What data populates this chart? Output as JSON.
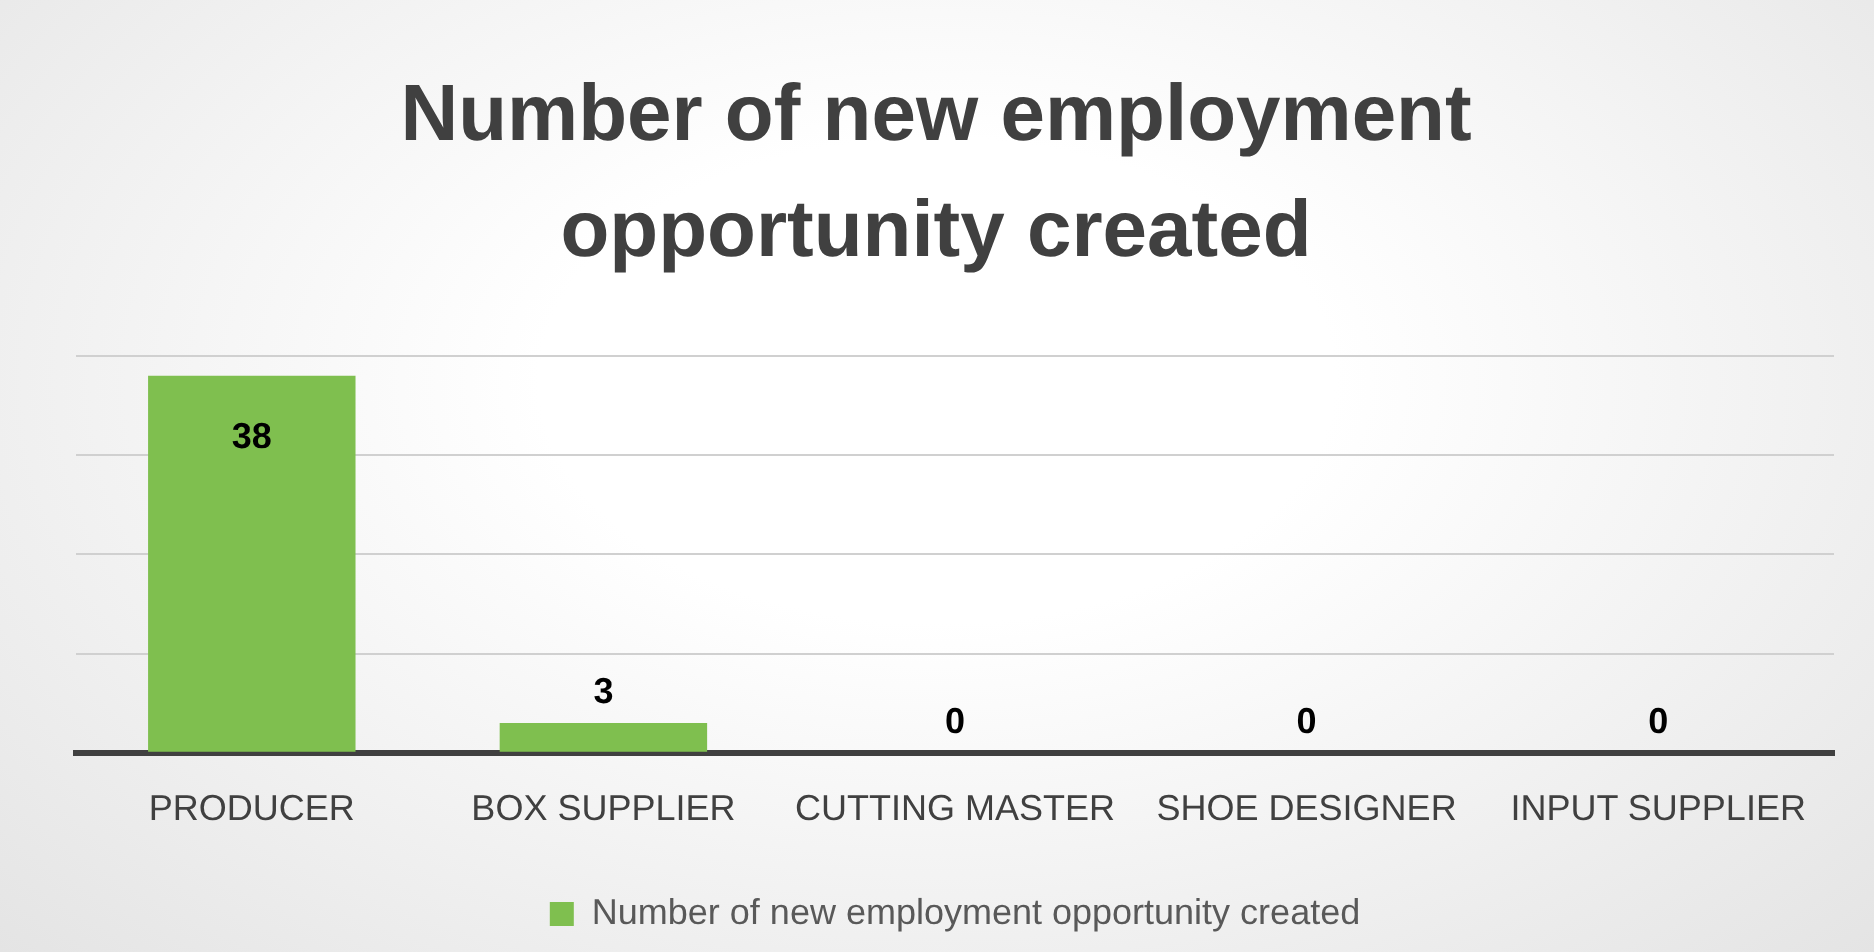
{
  "chart_data": {
    "type": "bar",
    "title": "Number of new employment opportunity created",
    "categories": [
      "PRODUCER",
      "BOX SUPPLIER",
      "CUTTING MASTER",
      "SHOE DESIGNER",
      "INPUT SUPPLIER"
    ],
    "series": [
      {
        "name": "Number of new employment opportunity created",
        "color": "#7fbf4f",
        "values": [
          38,
          3,
          0,
          0,
          0
        ]
      }
    ],
    "ylim": [
      0,
      40
    ],
    "yticks": [
      {
        "value": 0,
        "label": null
      },
      {
        "value": 10,
        "label": null
      },
      {
        "value": 20,
        "label": null
      },
      {
        "value": 30,
        "label": null
      },
      {
        "value": 40,
        "label": null
      }
    ],
    "grid": "y",
    "tick_labels": "x",
    "data_labels": true,
    "legend": "bottom"
  }
}
